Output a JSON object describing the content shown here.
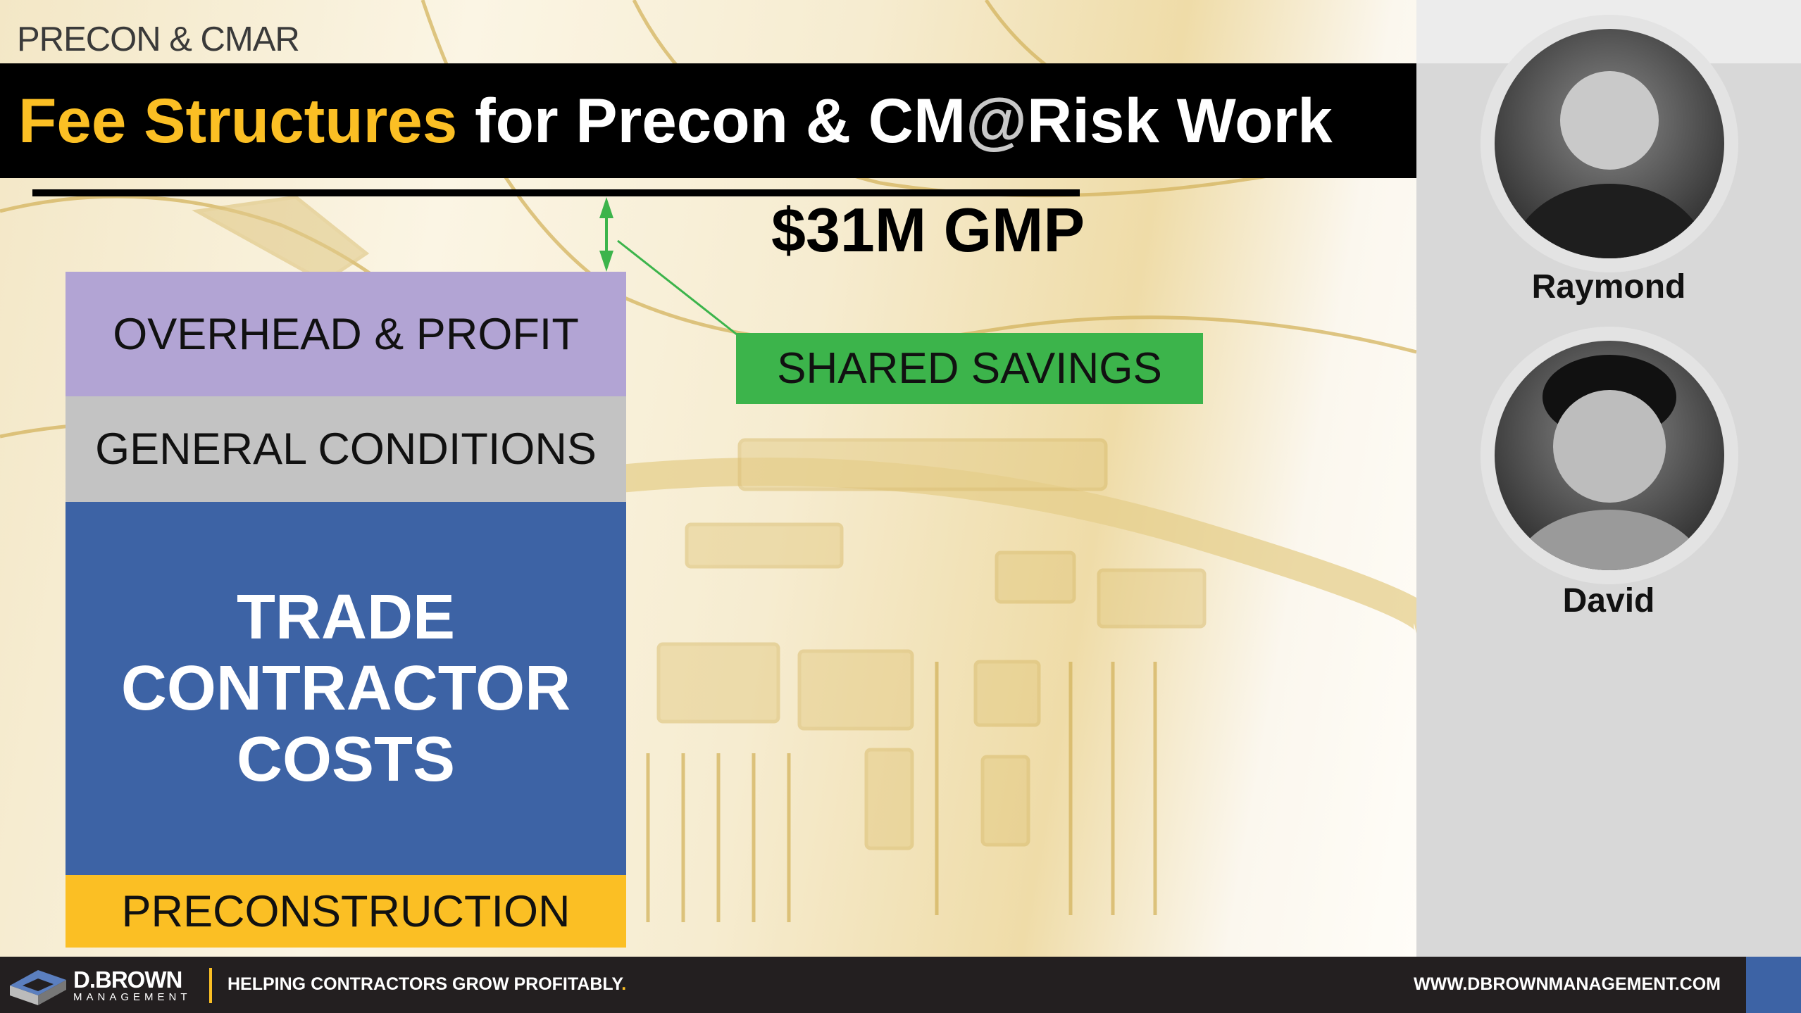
{
  "slide": {
    "kicker": "PRECON & CMAR",
    "title": {
      "highlight": "Fee Structures",
      "part1": " for Precon & CM",
      "at": "@",
      "part2": "Risk Work"
    },
    "gmp_label": "$31M GMP",
    "stack": [
      {
        "label": "OVERHEAD & PROFIT",
        "color": "#b2a4d4"
      },
      {
        "label": "GENERAL CONDITIONS",
        "color": "#c3c3c3"
      },
      {
        "label": "TRADE CONTRACTOR COSTS",
        "color": "#3d63a5"
      },
      {
        "label": "PRECONSTRUCTION",
        "color": "#fbbf24"
      }
    ],
    "shared_savings": {
      "label": "SHARED SAVINGS",
      "color": "#3cb44b"
    }
  },
  "presenters": [
    {
      "name": "Raymond",
      "icon": "person-photo"
    },
    {
      "name": "David",
      "icon": "person-photo"
    }
  ],
  "footer": {
    "logo_name": "D.BROWN",
    "logo_sub": "MANAGEMENT",
    "tagline": "HELPING CONTRACTORS GROW PROFITABLY",
    "tagline_end": ".",
    "website": "WWW.DBROWNMANAGEMENT.COM"
  },
  "colors": {
    "accent": "#fbbf24",
    "brand_blue": "#3d63a5",
    "footer_bg": "#231f20"
  }
}
